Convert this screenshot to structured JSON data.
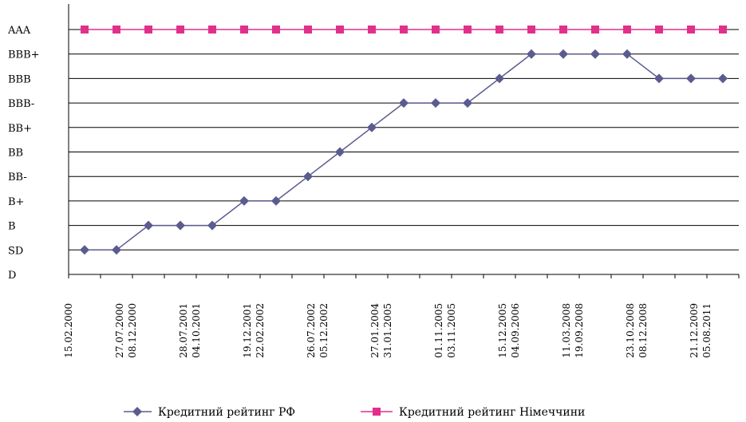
{
  "chart_data": {
    "type": "line",
    "categories": [
      "15.02.2000",
      "27.07.2000",
      "08.12.2000",
      "28.07.2001",
      "04.10.2001",
      "19.12.2001",
      "22.02.2002",
      "26.07.2002",
      "05.12.2002",
      "27.01.2004",
      "31.01.2005",
      "01.11.2005",
      "03.11.2005",
      "15.12.2005",
      "04.09.2006",
      "11.03.2008",
      "19.09.2008",
      "23.10.2008",
      "08.12.2008",
      "21.12.2009",
      "05.08.2011"
    ],
    "y_categories": [
      "D",
      "SD",
      "B",
      "B+",
      "BB-",
      "BB",
      "BB+",
      "BBB-",
      "BBB",
      "BBB+",
      "AAA"
    ],
    "series": [
      {
        "name": "Кредитний рейтинг РФ",
        "color": "#5b5b8f",
        "marker": "diamond",
        "values": [
          "SD",
          "SD",
          "B",
          "B",
          "B",
          "B+",
          "B+",
          "BB-",
          "BB",
          "BB+",
          "BBB-",
          "BBB-",
          "BBB-",
          "BBB",
          "BBB+",
          "BBB+",
          "BBB+",
          "BBB+",
          "BBB",
          "BBB",
          "BBB"
        ]
      },
      {
        "name": "Кредитний рейтинг Німеччини",
        "color": "#e0308c",
        "marker": "square",
        "values": [
          "AAA",
          "AAA",
          "AAA",
          "AAA",
          "AAA",
          "AAA",
          "AAA",
          "AAA",
          "AAA",
          "AAA",
          "AAA",
          "AAA",
          "AAA",
          "AAA",
          "AAA",
          "AAA",
          "AAA",
          "AAA",
          "AAA",
          "AAA",
          "AAA"
        ]
      }
    ],
    "grid": true,
    "legend_position": "bottom"
  }
}
